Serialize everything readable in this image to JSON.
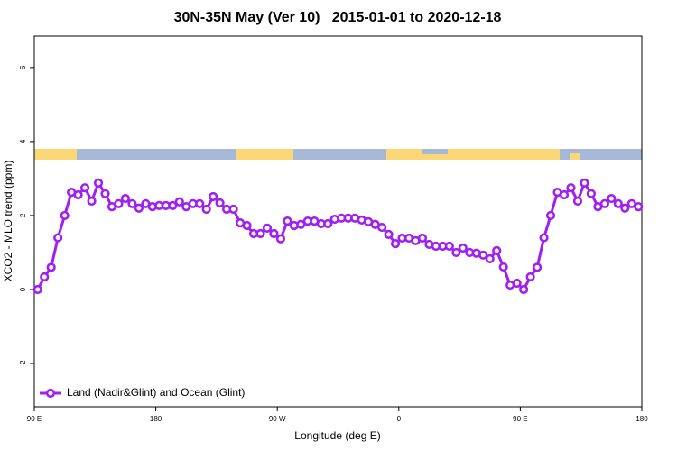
{
  "chart_data": {
    "type": "line",
    "title": "30N-35N May (Ver 10)   2015-01-01 to 2020-12-18",
    "x_label": "Longitude (deg E)",
    "y_label": "XCO2 - MLO trend (ppm)",
    "xlim": [
      90,
      540
    ],
    "ylim": [
      -3.17,
      6.85
    ],
    "xticks": [
      {
        "value": 90,
        "label": "90 E"
      },
      180,
      {
        "value": 270,
        "label": "90 W"
      },
      {
        "value": 360,
        "label": "0"
      },
      {
        "value": 450,
        "label": "90 E"
      },
      {
        "value": 540,
        "label": "180"
      }
    ],
    "yticks": [
      -2,
      0,
      2,
      4,
      6
    ],
    "grid": false,
    "legend": "bottom-left",
    "x": [
      92.5,
      97.5,
      102.5,
      107.5,
      112.5,
      117.5,
      122.5,
      127.5,
      132.5,
      137.5,
      142.5,
      147.5,
      152.5,
      157.5,
      162.5,
      167.5,
      172.5,
      177.5,
      182.5,
      187.5,
      192.5,
      197.5,
      202.5,
      207.5,
      212.5,
      217.5,
      222.5,
      227.5,
      232.5,
      237.5,
      242.5,
      247.5,
      252.5,
      257.5,
      262.5,
      267.5,
      272.5,
      277.5,
      282.5,
      287.5,
      292.5,
      297.5,
      302.5,
      307.5,
      312.5,
      317.5,
      322.5,
      327.5,
      332.5,
      337.5,
      342.5,
      347.5,
      352.5,
      357.5,
      362.5,
      367.5,
      372.5,
      377.5,
      382.5,
      387.5,
      392.5,
      397.5,
      402.5,
      407.5,
      412.5,
      417.5,
      422.5,
      427.5,
      432.5,
      437.5,
      442.5,
      447.5,
      452.5,
      457.5,
      462.5,
      467.5,
      472.5,
      477.5,
      482.5,
      487.5,
      492.5,
      497.5,
      502.5,
      507.5,
      512.5,
      517.5,
      522.5,
      527.5,
      532.5,
      537.5
    ],
    "series": [
      {
        "name": "Land (Nadir&Glint) and Ocean (Glint)",
        "color": "#a020f0",
        "values": [
          0.0,
          0.34,
          0.6,
          1.4,
          2.0,
          2.63,
          2.56,
          2.75,
          2.39,
          2.88,
          2.59,
          2.24,
          2.32,
          2.46,
          2.32,
          2.2,
          2.32,
          2.24,
          2.27,
          2.27,
          2.27,
          2.37,
          2.24,
          2.32,
          2.32,
          2.17,
          2.51,
          2.34,
          2.17,
          2.17,
          1.8,
          1.73,
          1.51,
          1.51,
          1.66,
          1.51,
          1.37,
          1.85,
          1.73,
          1.76,
          1.85,
          1.85,
          1.78,
          1.78,
          1.9,
          1.93,
          1.93,
          1.93,
          1.88,
          1.83,
          1.76,
          1.68,
          1.49,
          1.24,
          1.39,
          1.39,
          1.32,
          1.39,
          1.22,
          1.17,
          1.17,
          1.17,
          1.0,
          1.12,
          1.0,
          0.98,
          0.93,
          0.83,
          1.05,
          0.61,
          0.12,
          0.17,
          0.0,
          0.34,
          0.6,
          1.4,
          2.0,
          2.63,
          2.56,
          2.75,
          2.39,
          2.88,
          2.59,
          2.24,
          2.32,
          2.46,
          2.32,
          2.2,
          2.32,
          2.24
        ]
      }
    ]
  }
}
